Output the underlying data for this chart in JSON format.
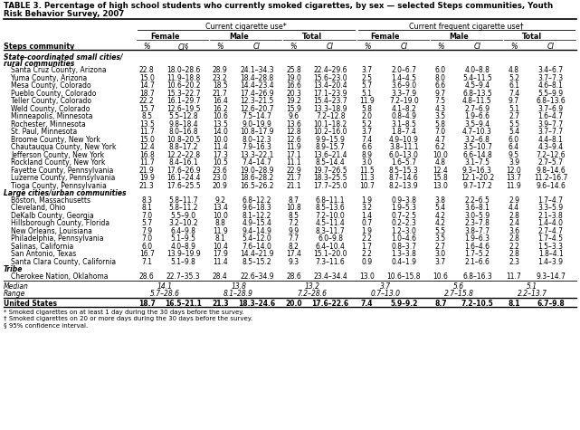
{
  "title_line1": "TABLE 3. Percentage of high school students who currently smoked cigarettes, by sex — selected Steps communities, Youth",
  "title_line2": "Risk Behavior Survey, 2007",
  "header1": [
    "Current cigarette use*",
    "Current frequent cigarette use†"
  ],
  "header2": [
    "Female",
    "Male",
    "Total",
    "Female",
    "Male",
    "Total"
  ],
  "col_label": "Steps community",
  "col_units": [
    "%",
    "CI§",
    "%",
    "CI",
    "%",
    "CI",
    "%",
    "CI",
    "%",
    "CI",
    "%",
    "CI"
  ],
  "section1_label1": "State-coordinated small cities/",
  "section1_label2": "rural communities",
  "section2_label": "Large cities/urban communities",
  "section3_label": "Tribe",
  "rows": [
    [
      "Santa Cruz County, Arizona",
      "22.8",
      "18.0–28.6",
      "28.9",
      "24.1–34.3",
      "25.8",
      "22.4–29.6",
      "3.7",
      "2.0–6.7",
      "6.0",
      "4.0–8.8",
      "4.8",
      "3.4–6.7"
    ],
    [
      "Yuma County, Arizona",
      "15.0",
      "11.9–18.8",
      "23.2",
      "18.4–28.8",
      "19.0",
      "15.6–23.0",
      "2.5",
      "1.4–4.5",
      "8.0",
      "5.4–11.5",
      "5.2",
      "3.7–7.3"
    ],
    [
      "Mesa County, Colorado",
      "14.7",
      "10.6–20.2",
      "18.5",
      "14.4–23.4",
      "16.6",
      "13.4–20.4",
      "5.7",
      "3.6–9.0",
      "6.6",
      "4.5–9.4",
      "6.1",
      "4.6–8.1"
    ],
    [
      "Pueblo County, Colorado",
      "18.7",
      "15.3–22.7",
      "21.7",
      "17.4–26.9",
      "20.3",
      "17.1–23.9",
      "5.1",
      "3.3–7.9",
      "9.7",
      "6.8–13.5",
      "7.4",
      "5.5–9.9"
    ],
    [
      "Teller County, Colorado",
      "22.2",
      "16.1–29.7",
      "16.4",
      "12.3–21.5",
      "19.2",
      "15.4–23.7",
      "11.9",
      "7.2–19.0",
      "7.5",
      "4.8–11.5",
      "9.7",
      "6.8–13.6"
    ],
    [
      "Weld County, Colorado",
      "15.7",
      "12.6–19.5",
      "16.2",
      "12.6–20.7",
      "15.9",
      "13.3–18.9",
      "5.8",
      "4.1–8.2",
      "4.3",
      "2.7–6.9",
      "5.1",
      "3.7–6.9"
    ],
    [
      "Minneapolis, Minnesota",
      "8.5",
      "5.5–12.8",
      "10.6",
      "7.5–14.7",
      "9.6",
      "7.2–12.8",
      "2.0",
      "0.8–4.9",
      "3.5",
      "1.9–6.6",
      "2.7",
      "1.6–4.7"
    ],
    [
      "Rochester, Minnesota",
      "13.5",
      "9.8–18.4",
      "13.5",
      "9.0–19.9",
      "13.6",
      "10.1–18.2",
      "5.2",
      "3.1–8.5",
      "5.8",
      "3.5–9.4",
      "5.5",
      "3.9–7.7"
    ],
    [
      "St. Paul, Minnesota",
      "11.7",
      "8.0–16.8",
      "14.0",
      "10.8–17.9",
      "12.8",
      "10.2–16.0",
      "3.7",
      "1.8–7.4",
      "7.0",
      "4.7–10.3",
      "5.4",
      "3.7–7.7"
    ],
    [
      "Broome County, New York",
      "15.0",
      "10.8–20.5",
      "10.0",
      "8.0–12.3",
      "12.6",
      "9.9–15.9",
      "7.4",
      "4.9–10.9",
      "4.7",
      "3.2–6.8",
      "6.0",
      "4.4–8.1"
    ],
    [
      "Chautauqua County, New York",
      "12.4",
      "8.8–17.2",
      "11.4",
      "7.9–16.3",
      "11.9",
      "8.9–15.7",
      "6.6",
      "3.8–11.1",
      "6.2",
      "3.5–10.7",
      "6.4",
      "4.3–9.4"
    ],
    [
      "Jefferson County, New York",
      "16.8",
      "12.2–22.8",
      "17.3",
      "13.3–22.1",
      "17.1",
      "13.6–21.4",
      "8.9",
      "6.0–13.0",
      "10.0",
      "6.6–14.8",
      "9.5",
      "7.2–12.6"
    ],
    [
      "Rockland County, New York",
      "11.7",
      "8.4–16.1",
      "10.5",
      "7.4–14.7",
      "11.1",
      "8.5–14.4",
      "3.0",
      "1.6–5.7",
      "4.8",
      "3.1–7.5",
      "3.9",
      "2.7–5.7"
    ],
    [
      "Fayette County, Pennsylvania",
      "21.9",
      "17.6–26.9",
      "23.6",
      "19.0–28.9",
      "22.9",
      "19.7–26.5",
      "11.5",
      "8.5–15.3",
      "12.4",
      "9.3–16.3",
      "12.0",
      "9.8–14.6"
    ],
    [
      "Luzerne County, Pennsylvania",
      "19.9",
      "16.1–24.4",
      "23.0",
      "18.6–28.2",
      "21.7",
      "18.3–25.5",
      "11.3",
      "8.7–14.6",
      "15.8",
      "12.1–20.2",
      "13.7",
      "11.2–16.7"
    ],
    [
      "Tioga County, Pennsylvania",
      "21.3",
      "17.6–25.5",
      "20.9",
      "16.5–26.2",
      "21.1",
      "17.7–25.0",
      "10.7",
      "8.2–13.9",
      "13.0",
      "9.7–17.2",
      "11.9",
      "9.6–14.6"
    ],
    [
      "Boston, Massachusetts",
      "8.3",
      "5.8–11.7",
      "9.2",
      "6.8–12.2",
      "8.7",
      "6.8–11.1",
      "1.9",
      "0.9–3.8",
      "3.8",
      "2.2–6.5",
      "2.9",
      "1.7–4.7"
    ],
    [
      "Cleveland, Ohio",
      "8.1",
      "5.8–11.2",
      "13.4",
      "9.6–18.3",
      "10.8",
      "8.5–13.6",
      "3.2",
      "1.9–5.3",
      "5.4",
      "3.6–8.1",
      "4.4",
      "3.3–5.9"
    ],
    [
      "DeKalb County, Georgia",
      "7.0",
      "5.5–9.0",
      "10.0",
      "8.1–12.2",
      "8.5",
      "7.2–10.0",
      "1.4",
      "0.7–2.5",
      "4.2",
      "3.0–5.9",
      "2.8",
      "2.1–3.8"
    ],
    [
      "Hillsborough County, Florida",
      "5.7",
      "3.2–10.2",
      "8.8",
      "4.9–15.4",
      "7.2",
      "4.5–11.4",
      "0.7",
      "0.2–2.3",
      "4.2",
      "2.3–7.8",
      "2.4",
      "1.4–4.0"
    ],
    [
      "New Orleans, Louisiana",
      "7.9",
      "6.4–9.8",
      "11.9",
      "9.4–14.9",
      "9.9",
      "8.3–11.7",
      "1.9",
      "1.2–3.0",
      "5.5",
      "3.8–7.7",
      "3.6",
      "2.7–4.7"
    ],
    [
      "Philadelphia, Pennsylvania",
      "7.0",
      "5.1–9.5",
      "8.1",
      "5.4–12.0",
      "7.7",
      "6.0–9.8",
      "2.2",
      "1.0–4.6",
      "3.5",
      "1.9–6.3",
      "2.8",
      "1.7–4.5"
    ],
    [
      "Salinas, California",
      "6.0",
      "4.0–8.9",
      "10.4",
      "7.6–14.0",
      "8.2",
      "6.4–10.4",
      "1.7",
      "0.8–3.7",
      "2.7",
      "1.6–4.6",
      "2.2",
      "1.5–3.3"
    ],
    [
      "San Antonio, Texas",
      "16.7",
      "13.9–19.9",
      "17.9",
      "14.4–21.9",
      "17.4",
      "15.1–20.0",
      "2.2",
      "1.3–3.8",
      "3.0",
      "1.7–5.2",
      "2.8",
      "1.8–4.1"
    ],
    [
      "Santa Clara County, California",
      "7.1",
      "5.1–9.8",
      "11.4",
      "8.5–15.2",
      "9.3",
      "7.3–11.6",
      "0.9",
      "0.4–1.9",
      "3.7",
      "2.1–6.6",
      "2.3",
      "1.4–3.9"
    ],
    [
      "Cherokee Nation, Oklahoma",
      "28.6",
      "22.7–35.3",
      "28.4",
      "22.6–34.9",
      "28.6",
      "23.4–34.4",
      "13.0",
      "10.6–15.8",
      "10.6",
      "6.8–16.3",
      "11.7",
      "9.3–14.7"
    ]
  ],
  "median_vals": [
    "14.1",
    "13.8",
    "13.2",
    "3.7",
    "5.6",
    "5.1"
  ],
  "range_vals": [
    "5.7–28.6",
    "8.1–28.9",
    "7.2–28.6",
    "0.7–13.0",
    "2.7–15.8",
    "2.2–13.7"
  ],
  "us_row": [
    "United States",
    "18.7",
    "16.5–21.1",
    "21.3",
    "18.3–24.6",
    "20.0",
    "17.6–22.6",
    "7.4",
    "5.9–9.2",
    "8.7",
    "7.2–10.5",
    "8.1",
    "6.7–9.8"
  ],
  "footnotes": [
    "* Smoked cigarettes on at least 1 day during the 30 days before the survey.",
    "† Smoked cigarettes on 20 or more days during the 30 days before the survey.",
    "§ 95% confidence interval."
  ]
}
